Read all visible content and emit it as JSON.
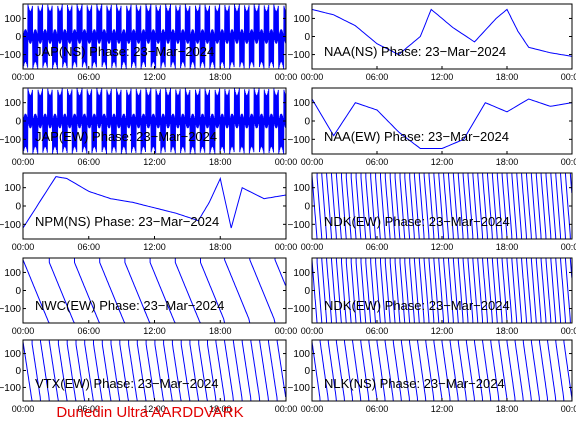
{
  "footer": "Dunedin Ultra AARDDVARK",
  "colors": {
    "trace": "#0000ff",
    "axis": "#000000",
    "footer": "#e00000",
    "background": "#ffffff"
  },
  "chart_data": [
    {
      "type": "line",
      "title": "JAP(NS) Phase: 23−Mar−2024",
      "xticks": [
        "00:00",
        "06:00",
        "12:00",
        "18:00",
        "00:00"
      ],
      "yticks": [
        "100",
        "0",
        "−100"
      ],
      "ylim": [
        -180,
        180
      ],
      "xlim": [
        0,
        24
      ],
      "series": [
        {
          "pattern": "fast_wraps",
          "segments": [
            [
              0,
              24,
              0.02
            ]
          ]
        }
      ]
    },
    {
      "type": "line",
      "title": "NAA(NS) Phase: 23−Mar−2024",
      "xticks": [
        "00:00",
        "06:00",
        "12:00",
        "18:00",
        "00:00"
      ],
      "yticks": [
        "100",
        "0",
        "−100"
      ],
      "ylim": [
        -180,
        180
      ],
      "xlim": [
        0,
        24
      ],
      "series": [
        {
          "pattern": "day_bowl",
          "x": [
            0,
            2,
            4,
            6,
            8,
            10,
            11,
            13,
            15,
            17,
            18,
            19,
            20,
            22,
            24
          ],
          "y": [
            150,
            120,
            60,
            -40,
            -100,
            0,
            150,
            50,
            -30,
            100,
            150,
            30,
            -60,
            -90,
            -110
          ]
        }
      ]
    },
    {
      "type": "line",
      "title": "JAP(EW) Phase: 23−Mar−2024",
      "xticks": [
        "00:00",
        "06:00",
        "12:00",
        "18:00",
        "00:00"
      ],
      "yticks": [
        "100",
        "0",
        "−100"
      ],
      "ylim": [
        -180,
        180
      ],
      "xlim": [
        0,
        24
      ],
      "series": [
        {
          "pattern": "fast_wraps",
          "segments": [
            [
              0,
              24,
              0.02
            ]
          ]
        }
      ]
    },
    {
      "type": "line",
      "title": "NAA(EW) Phase: 23−Mar−2024",
      "xticks": [
        "00:00",
        "06:00",
        "12:00",
        "18:00",
        "00:00"
      ],
      "yticks": [
        "100",
        "0",
        "−100"
      ],
      "ylim": [
        -180,
        180
      ],
      "xlim": [
        0,
        24
      ],
      "series": [
        {
          "pattern": "day_bowl",
          "x": [
            0,
            2,
            4,
            6,
            8,
            10,
            12,
            14,
            16,
            18,
            20,
            22,
            24
          ],
          "y": [
            120,
            -80,
            100,
            60,
            -60,
            -150,
            -150,
            -100,
            100,
            50,
            120,
            80,
            100
          ]
        }
      ]
    },
    {
      "type": "line",
      "title": "NPM(NS) Phase: 23−Mar−2024",
      "xticks": [
        "00:00",
        "06:00",
        "12:00",
        "18:00",
        "00:00"
      ],
      "yticks": [
        "100",
        "0",
        "−100"
      ],
      "ylim": [
        -180,
        180
      ],
      "xlim": [
        0,
        24
      ],
      "series": [
        {
          "pattern": "slow_drift",
          "x": [
            0,
            3,
            4,
            6,
            8,
            10,
            12,
            14,
            16,
            17,
            18,
            19,
            20,
            22,
            24
          ],
          "y": [
            -120,
            160,
            150,
            80,
            40,
            20,
            -10,
            -40,
            -80,
            20,
            150,
            -120,
            100,
            40,
            60
          ]
        }
      ]
    },
    {
      "type": "line",
      "title": "NDK(EW) Phase: 23−Mar−2024",
      "xticks": [
        "00:00",
        "06:00",
        "12:00",
        "18:00",
        "00:00"
      ],
      "yticks": [
        "100",
        "0",
        "−100"
      ],
      "ylim": [
        -180,
        180
      ],
      "xlim": [
        0,
        24
      ],
      "series": [
        {
          "pattern": "sawtooth",
          "period_h": 0.45
        }
      ]
    },
    {
      "type": "line",
      "title": "NWC(EW) Phase: 23−Mar−2024",
      "xticks": [
        "00:00",
        "06:00",
        "12:00",
        "18:00",
        "00:00"
      ],
      "yticks": [
        "100",
        "0",
        "−100"
      ],
      "ylim": [
        -180,
        180
      ],
      "xlim": [
        0,
        24
      ],
      "series": [
        {
          "pattern": "sawtooth",
          "period_h": 2.3
        }
      ]
    },
    {
      "type": "line",
      "title": "NDK(EW) Phase: 23−Mar−2024",
      "xticks": [
        "00:00",
        "06:00",
        "12:00",
        "18:00",
        "00:00"
      ],
      "yticks": [
        "100",
        "0",
        "−100"
      ],
      "ylim": [
        -180,
        180
      ],
      "xlim": [
        0,
        24
      ],
      "series": [
        {
          "pattern": "sawtooth",
          "period_h": 0.45
        }
      ]
    },
    {
      "type": "line",
      "title": "VTX(EW) Phase: 23−Mar−2024",
      "xticks": [
        "00:00",
        "06:00",
        "12:00",
        "18:00",
        "00:00"
      ],
      "yticks": [
        "100",
        "0",
        "−100"
      ],
      "ylim": [
        -180,
        180
      ],
      "xlim": [
        0,
        24
      ],
      "series": [
        {
          "pattern": "sawtooth",
          "period_h": 0.8
        }
      ]
    },
    {
      "type": "line",
      "title": "NLK(NS) Phase: 23−Mar−2024",
      "xticks": [
        "00:00",
        "06:00",
        "12:00",
        "18:00",
        "00:00"
      ],
      "yticks": [
        "100",
        "0",
        "−100"
      ],
      "ylim": [
        -180,
        180
      ],
      "xlim": [
        0,
        24
      ],
      "series": [
        {
          "pattern": "sawtooth",
          "period_h": 0.75
        }
      ]
    }
  ]
}
